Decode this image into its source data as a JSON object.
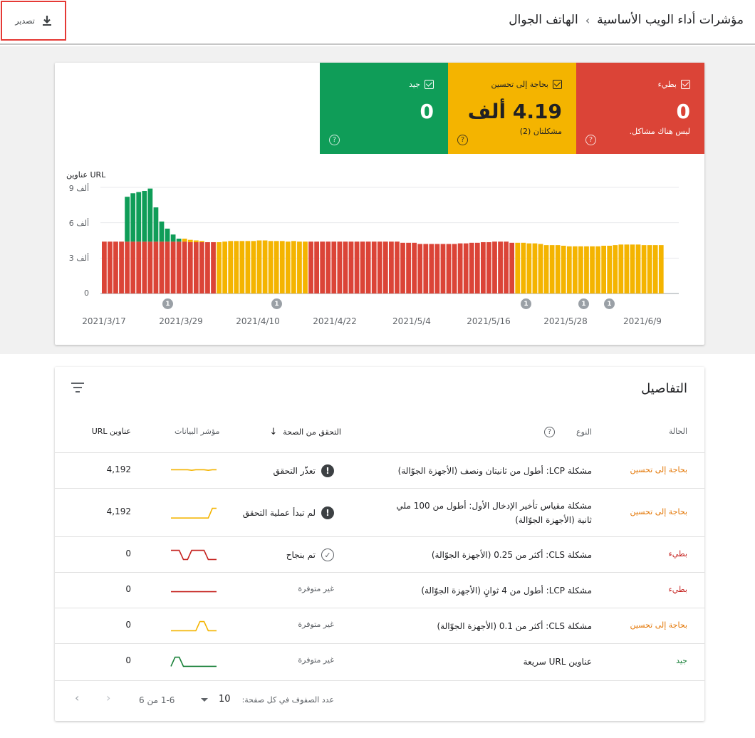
{
  "header": {
    "breadcrumb_root": "مؤشرات أداء الويب الأساسية",
    "breadcrumb_current": "الهاتف الجوال",
    "export_label": "تصدير",
    "export_icon": "download-icon"
  },
  "summary": {
    "poor": {
      "label": "بطيء",
      "value": "0",
      "sub": "ليس هناك مشاكل.",
      "color": "#db4437"
    },
    "ni": {
      "label": "بحاجة إلى تحسين",
      "value": "4.19 ألف",
      "sub": "مشكلتان (2)",
      "color": "#f4b400"
    },
    "good": {
      "label": "جيد",
      "value": "0",
      "sub": "",
      "color": "#0f9d58"
    },
    "help_icon": "?"
  },
  "chart_data": {
    "type": "bar",
    "stacked": true,
    "ylabel": "عناوين URL",
    "yticks": [
      "9 ألف",
      "6 ألف",
      "3 ألف",
      "0"
    ],
    "ylim": [
      0,
      9000
    ],
    "xticks": [
      "2021/3/17",
      "2021/3/29",
      "2021/4/10",
      "2021/4/22",
      "2021/5/4",
      "2021/5/16",
      "2021/5/28",
      "2021/6/9"
    ],
    "annotation_label": "1",
    "series": [
      {
        "name": "بطيء",
        "color": "#db4437",
        "values": [
          4400,
          4400,
          4400,
          4400,
          4400,
          4400,
          4400,
          4400,
          4400,
          4400,
          4400,
          4400,
          4400,
          4400,
          4400,
          4350,
          4350,
          4350,
          4350,
          4350,
          0,
          0,
          0,
          0,
          0,
          0,
          0,
          0,
          0,
          0,
          0,
          0,
          0,
          0,
          0,
          0,
          4400,
          4400,
          4400,
          4400,
          4400,
          4400,
          4400,
          4400,
          4400,
          4400,
          4400,
          4400,
          4400,
          4400,
          4400,
          4400,
          4300,
          4300,
          4300,
          4200,
          4200,
          4200,
          4200,
          4200,
          4200,
          4200,
          4250,
          4250,
          4300,
          4300,
          4350,
          4350,
          4400,
          4400,
          4400,
          4300,
          0,
          0,
          0,
          0,
          0,
          0,
          0,
          0,
          0,
          0,
          0,
          0,
          0,
          0,
          0,
          0,
          0,
          0,
          0,
          0,
          0,
          0,
          0,
          0,
          0,
          0,
          0
        ]
      },
      {
        "name": "بحاجة إلى تحسين",
        "color": "#f4b400",
        "values": [
          0,
          0,
          0,
          0,
          0,
          0,
          0,
          0,
          0,
          0,
          0,
          0,
          0,
          0,
          250,
          200,
          150,
          100,
          0,
          0,
          4350,
          4400,
          4450,
          4450,
          4450,
          4450,
          4450,
          4500,
          4500,
          4450,
          4450,
          4450,
          4400,
          4450,
          4400,
          4400,
          0,
          0,
          0,
          0,
          0,
          0,
          0,
          0,
          0,
          0,
          0,
          0,
          0,
          0,
          0,
          0,
          0,
          0,
          0,
          0,
          0,
          0,
          0,
          0,
          0,
          0,
          0,
          0,
          0,
          0,
          0,
          0,
          0,
          0,
          0,
          0,
          4300,
          4300,
          4250,
          4250,
          4200,
          4100,
          4100,
          4100,
          4050,
          4000,
          4000,
          4000,
          4000,
          4000,
          4000,
          4050,
          4050,
          4100,
          4150,
          4150,
          4150,
          4150,
          4100,
          4100,
          4100,
          4100
        ]
      },
      {
        "name": "جيد",
        "color": "#0f9d58",
        "values": [
          0,
          0,
          0,
          0,
          3800,
          4100,
          4200,
          4300,
          4500,
          2900,
          1700,
          1100,
          600,
          250,
          0,
          0,
          0,
          0,
          0,
          0,
          0,
          0,
          0,
          0,
          0,
          0,
          0,
          0,
          0,
          0,
          0,
          0,
          0,
          0,
          0,
          0,
          0,
          0,
          0,
          0,
          0,
          0,
          0,
          0,
          0,
          0,
          0,
          0,
          0,
          0,
          0,
          0,
          0,
          0,
          0,
          0,
          0,
          0,
          0,
          0,
          0,
          0,
          0,
          0,
          0,
          0,
          0,
          0,
          0,
          0,
          0,
          0,
          0,
          0,
          0,
          0,
          0,
          0,
          0,
          0,
          0,
          0,
          0,
          0,
          0,
          0,
          0,
          0,
          0,
          0,
          0,
          0,
          0,
          0,
          0,
          0
        ]
      }
    ]
  },
  "details": {
    "title": "التفاصيل",
    "filter_icon": "filter-icon",
    "columns": {
      "status": "الحالة",
      "type": "النوع",
      "validation": "التحقق من الصحة",
      "trend": "مؤشر البيانات",
      "urls": "عناوين URL"
    },
    "rows": [
      {
        "status": "بحاجة إلى تحسين",
        "status_color": "#e37400",
        "type": "مشكلة LCP: أطول من ثانيتان ونصف (الأجهزة الجوّالة)",
        "validation": "تعذّر التحقق",
        "validation_icon": "!",
        "count": "4,192",
        "spark_color": "#f4b400",
        "spark": [
          0.6,
          0.6,
          0.6,
          0.6,
          0.6,
          0.55,
          0.6,
          0.6,
          0.6,
          0.55,
          0.6,
          0.6
        ],
        "height": 50
      },
      {
        "status": "بحاجة إلى تحسين",
        "status_color": "#e37400",
        "type": "مشكلة مقياس تأخير الإدخال الأول: أطول من 100 ملي ثانية (الأجهزة الجوّالة)",
        "validation": "لم تبدأ عملية التحقق",
        "validation_icon": "!",
        "count": "4,192",
        "spark_color": "#f4b400",
        "spark": [
          0.05,
          0.05,
          0.05,
          0.05,
          0.05,
          0.05,
          0.05,
          0.05,
          0.05,
          0.05,
          0.9,
          0.9
        ],
        "height": 68
      },
      {
        "status": "بطيء",
        "status_color": "#c5221f",
        "type": "مشكلة CLS: أكثر من 0.25 (الأجهزة الجوّالة)",
        "validation": "تم بنجاح",
        "validation_icon": "✓",
        "count": "0",
        "spark_color": "#c5221f",
        "spark": [
          0.9,
          0.9,
          0.9,
          0.1,
          0.1,
          0.9,
          0.9,
          0.9,
          0.9,
          0.1,
          0.1,
          0.1
        ],
        "height": 50
      },
      {
        "status": "بطيء",
        "status_color": "#c5221f",
        "type": "مشكلة LCP: أطول من 4 ثوانٍ (الأجهزة الجوّالة)",
        "validation": "غير متوفرة",
        "validation_icon": "",
        "count": "0",
        "spark_color": "#c5221f",
        "spark": [
          0.4,
          0.4,
          0.4,
          0.4,
          0.4,
          0.4,
          0.4,
          0.4,
          0.4,
          0.4,
          0.4,
          0.4
        ],
        "height": 50
      },
      {
        "status": "بحاجة إلى تحسين",
        "status_color": "#e37400",
        "type": "مشكلة CLS: أكثر من 0.1 (الأجهزة الجوّالة)",
        "validation": "غير متوفرة",
        "validation_icon": "",
        "count": "0",
        "spark_color": "#f4b400",
        "spark": [
          0.1,
          0.1,
          0.1,
          0.1,
          0.1,
          0.1,
          0.1,
          0.9,
          0.9,
          0.1,
          0.1,
          0.1
        ],
        "height": 50
      },
      {
        "status": "جيد",
        "status_color": "#188038",
        "type": "عناوين URL سريعة",
        "validation": "غير متوفرة",
        "validation_icon": "",
        "count": "0",
        "spark_color": "#188038",
        "spark": [
          0.1,
          0.9,
          0.9,
          0.1,
          0.1,
          0.1,
          0.1,
          0.1,
          0.1,
          0.1,
          0.1,
          0.1
        ],
        "height": 50
      }
    ],
    "footer": {
      "rows_per_page_label": "عدد الصفوف في كل صفحة:",
      "rows_per_page": "10",
      "range": "1-6 من 6",
      "prev_icon": "chevron-left-icon",
      "next_icon": "chevron-right-icon"
    }
  }
}
